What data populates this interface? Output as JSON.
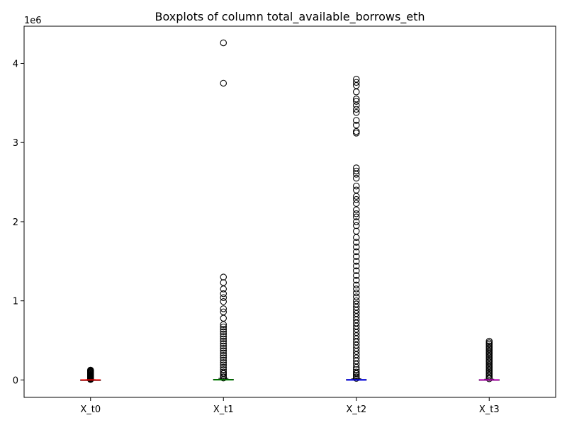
{
  "chart_data": {
    "type": "box",
    "title": "Boxplots of column total_available_borrows_eth",
    "xlabel": "",
    "ylabel": "",
    "y_scale_label": "1e6",
    "ylim": [
      -220000,
      4470000
    ],
    "y_ticks": [
      0,
      1,
      2,
      3,
      4
    ],
    "y_tick_multiplier": 1000000,
    "grid": false,
    "categories": [
      "X_t0",
      "X_t1",
      "X_t2",
      "X_t3"
    ],
    "series": [
      {
        "category": "X_t0",
        "median_color": "#ff0000",
        "q1": 0,
        "median": 500,
        "q3": 2000,
        "whisker_low": 0,
        "whisker_high": 5000,
        "outliers": [
          6000,
          9000,
          13000,
          18000,
          24000,
          30000,
          36000,
          42000,
          48000,
          55000,
          62000,
          70000,
          78000,
          86000,
          94000,
          102000,
          110000,
          118000,
          125000
        ]
      },
      {
        "category": "X_t1",
        "median_color": "#008000",
        "q1": 0,
        "median": 2000,
        "q3": 8000,
        "whisker_low": 0,
        "whisker_high": 20000,
        "outliers": [
          25000,
          40000,
          60000,
          80000,
          100000,
          130000,
          160000,
          190000,
          220000,
          250000,
          280000,
          310000,
          340000,
          370000,
          400000,
          430000,
          460000,
          490000,
          520000,
          550000,
          580000,
          610000,
          640000,
          670000,
          700000,
          780000,
          860000,
          900000,
          990000,
          1040000,
          1090000,
          1150000,
          1230000,
          1300000,
          3750000,
          4260000
        ]
      },
      {
        "category": "X_t2",
        "median_color": "#0000ff",
        "q1": 0,
        "median": 1000,
        "q3": 6000,
        "whisker_low": 0,
        "whisker_high": 15000,
        "outliers": [
          20000,
          40000,
          60000,
          80000,
          100000,
          130000,
          160000,
          200000,
          240000,
          280000,
          320000,
          360000,
          400000,
          440000,
          480000,
          520000,
          560000,
          600000,
          640000,
          680000,
          720000,
          760000,
          800000,
          840000,
          880000,
          920000,
          960000,
          1000000,
          1050000,
          1100000,
          1150000,
          1200000,
          1260000,
          1320000,
          1380000,
          1440000,
          1500000,
          1560000,
          1620000,
          1680000,
          1740000,
          1800000,
          1880000,
          1950000,
          2000000,
          2060000,
          2100000,
          2150000,
          2230000,
          2280000,
          2320000,
          2400000,
          2450000,
          2550000,
          2600000,
          2640000,
          2680000,
          3120000,
          3140000,
          3220000,
          3280000,
          3380000,
          3420000,
          3470000,
          3520000,
          3550000,
          3640000,
          3720000,
          3760000,
          3800000
        ]
      },
      {
        "category": "X_t3",
        "median_color": "#bf00bf",
        "q1": 0,
        "median": 1000,
        "q3": 4000,
        "whisker_low": 0,
        "whisker_high": 10000,
        "outliers": [
          15000,
          30000,
          50000,
          70000,
          90000,
          110000,
          130000,
          150000,
          170000,
          190000,
          210000,
          230000,
          250000,
          270000,
          290000,
          310000,
          330000,
          350000,
          370000,
          390000,
          410000,
          430000,
          450000,
          470000,
          490000
        ]
      }
    ]
  }
}
